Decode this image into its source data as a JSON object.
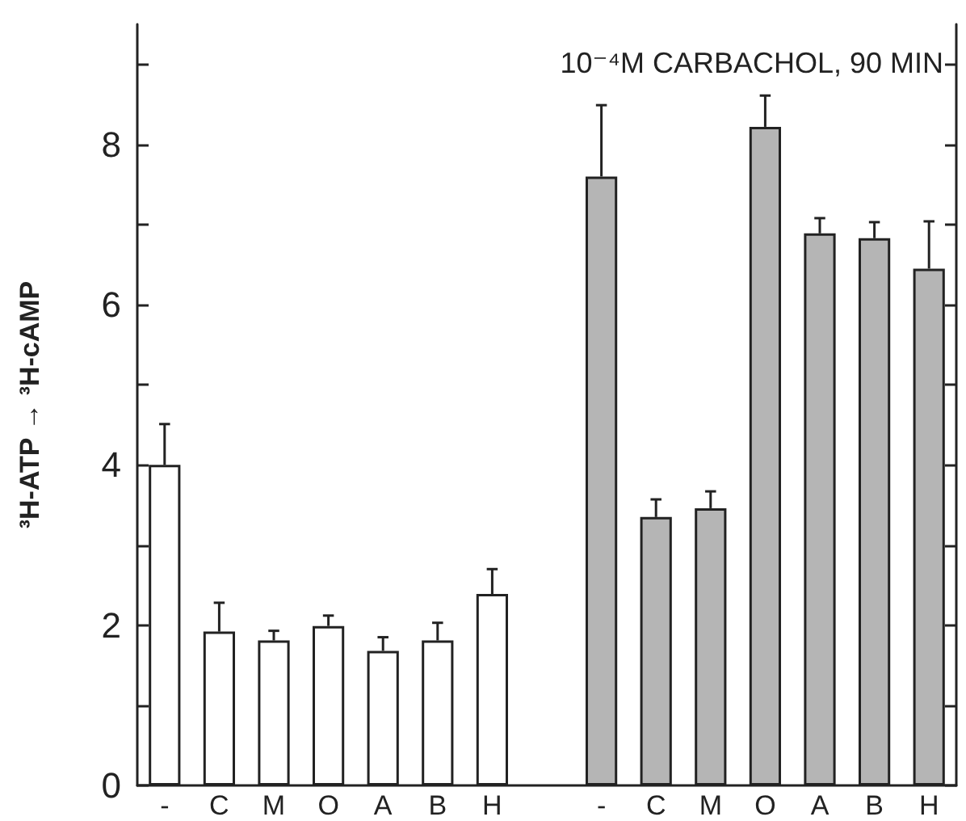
{
  "chart_data": {
    "type": "bar",
    "ylabel": "³H-ATP → ³H-cAMP",
    "annotations": [
      "10⁻⁴M CARBACHOL, 90 MIN"
    ],
    "categories": [
      "-",
      "C",
      "M",
      "O",
      "A",
      "B",
      "H",
      null,
      "-",
      "C",
      "M",
      "O",
      "A",
      "B",
      "H"
    ],
    "values": [
      4.0,
      1.92,
      1.81,
      1.99,
      1.68,
      1.81,
      2.39,
      null,
      7.6,
      3.35,
      3.46,
      8.22,
      6.89,
      6.83,
      6.45
    ],
    "colors": [
      "#ffffff",
      "#ffffff",
      "#ffffff",
      "#ffffff",
      "#ffffff",
      "#ffffff",
      "#ffffff",
      "#ffffff",
      "#b5b5b5",
      "#b5b5b5",
      "#b5b5b5",
      "#b5b5b5",
      "#b5b5b5",
      "#b5b5b5",
      "#b5b5b5"
    ],
    "errors": [
      [
        4.0,
        4.51
      ],
      [
        1.92,
        2.28
      ],
      [
        1.81,
        1.93
      ],
      [
        1.99,
        2.12
      ],
      [
        1.68,
        1.85
      ],
      [
        1.81,
        2.03
      ],
      [
        2.39,
        2.7
      ],
      null,
      [
        7.6,
        8.49
      ],
      [
        3.35,
        3.57
      ],
      [
        3.46,
        3.67
      ],
      [
        8.22,
        8.61
      ],
      [
        6.89,
        7.08
      ],
      [
        6.83,
        7.03
      ],
      [
        6.45,
        7.04
      ]
    ],
    "ylim": [
      0,
      9.5
    ],
    "yticks": [
      0,
      {
        "value": 1,
        "label": null
      },
      2,
      {
        "value": 3,
        "label": null
      },
      4,
      {
        "value": 5,
        "label": null
      },
      6,
      {
        "value": 7,
        "label": null
      },
      8,
      {
        "value": 9,
        "label": null
      }
    ]
  }
}
